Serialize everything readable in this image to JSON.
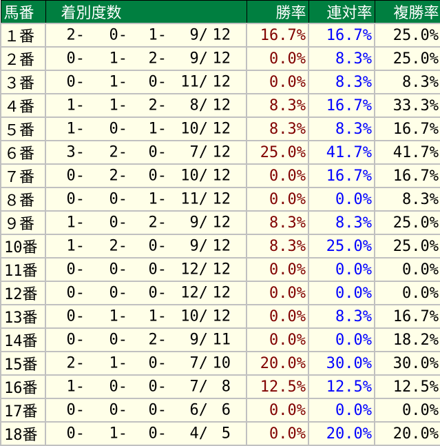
{
  "header": {
    "num": "馬番",
    "record": "着別度数",
    "win": "勝率",
    "place": "連対率",
    "show": "複勝率"
  },
  "colors": {
    "header_bg": "#007F40",
    "row_bg": "#FFFFE8",
    "win": "#800000",
    "place": "#0000FF",
    "show": "#000000"
  },
  "rows": [
    {
      "num": "１番",
      "r": [
        "2-",
        "0-",
        "1-",
        "9/",
        "12"
      ],
      "win": "16.7%",
      "place": "16.7%",
      "show": "25.0%"
    },
    {
      "num": "２番",
      "r": [
        "0-",
        "1-",
        "2-",
        "9/",
        "12"
      ],
      "win": "0.0%",
      "place": "8.3%",
      "show": "25.0%"
    },
    {
      "num": "３番",
      "r": [
        "0-",
        "1-",
        "0-",
        "11/",
        "12"
      ],
      "win": "0.0%",
      "place": "8.3%",
      "show": "8.3%"
    },
    {
      "num": "４番",
      "r": [
        "1-",
        "1-",
        "2-",
        "8/",
        "12"
      ],
      "win": "8.3%",
      "place": "16.7%",
      "show": "33.3%"
    },
    {
      "num": "５番",
      "r": [
        "1-",
        "0-",
        "1-",
        "10/",
        "12"
      ],
      "win": "8.3%",
      "place": "8.3%",
      "show": "16.7%"
    },
    {
      "num": "６番",
      "r": [
        "3-",
        "2-",
        "0-",
        "7/",
        "12"
      ],
      "win": "25.0%",
      "place": "41.7%",
      "show": "41.7%"
    },
    {
      "num": "７番",
      "r": [
        "0-",
        "2-",
        "0-",
        "10/",
        "12"
      ],
      "win": "0.0%",
      "place": "16.7%",
      "show": "16.7%"
    },
    {
      "num": "８番",
      "r": [
        "0-",
        "0-",
        "1-",
        "11/",
        "12"
      ],
      "win": "0.0%",
      "place": "0.0%",
      "show": "8.3%"
    },
    {
      "num": "９番",
      "r": [
        "1-",
        "0-",
        "2-",
        "9/",
        "12"
      ],
      "win": "8.3%",
      "place": "8.3%",
      "show": "25.0%"
    },
    {
      "num": "10番",
      "r": [
        "1-",
        "2-",
        "0-",
        "9/",
        "12"
      ],
      "win": "8.3%",
      "place": "25.0%",
      "show": "25.0%"
    },
    {
      "num": "11番",
      "r": [
        "0-",
        "0-",
        "0-",
        "12/",
        "12"
      ],
      "win": "0.0%",
      "place": "0.0%",
      "show": "0.0%"
    },
    {
      "num": "12番",
      "r": [
        "0-",
        "0-",
        "0-",
        "12/",
        "12"
      ],
      "win": "0.0%",
      "place": "0.0%",
      "show": "0.0%"
    },
    {
      "num": "13番",
      "r": [
        "0-",
        "1-",
        "1-",
        "10/",
        "12"
      ],
      "win": "0.0%",
      "place": "8.3%",
      "show": "16.7%"
    },
    {
      "num": "14番",
      "r": [
        "0-",
        "0-",
        "2-",
        "9/",
        "11"
      ],
      "win": "0.0%",
      "place": "0.0%",
      "show": "18.2%"
    },
    {
      "num": "15番",
      "r": [
        "2-",
        "1-",
        "0-",
        "7/",
        "10"
      ],
      "win": "20.0%",
      "place": "30.0%",
      "show": "30.0%"
    },
    {
      "num": "16番",
      "r": [
        "1-",
        "0-",
        "0-",
        "7/",
        "8"
      ],
      "win": "12.5%",
      "place": "12.5%",
      "show": "12.5%"
    },
    {
      "num": "17番",
      "r": [
        "0-",
        "0-",
        "0-",
        "6/",
        "6"
      ],
      "win": "0.0%",
      "place": "0.0%",
      "show": "0.0%"
    },
    {
      "num": "18番",
      "r": [
        "0-",
        "1-",
        "0-",
        "4/",
        "5"
      ],
      "win": "0.0%",
      "place": "20.0%",
      "show": "20.0%"
    }
  ]
}
